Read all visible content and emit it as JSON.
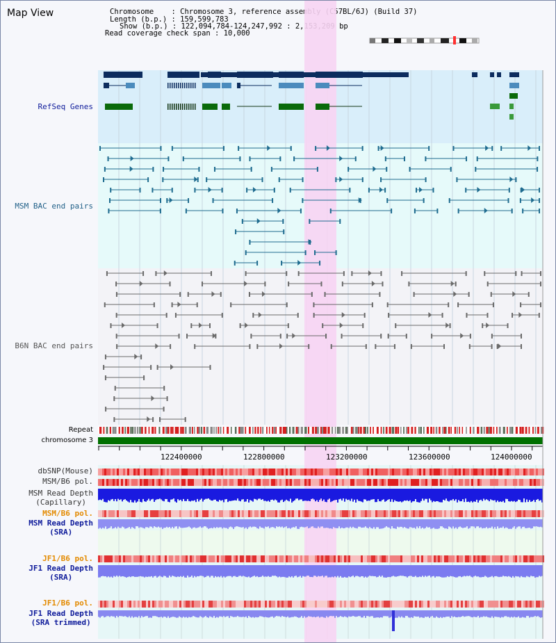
{
  "view": {
    "title": "Map View",
    "chromosome_line": "Chromosome    : Chromosome 3, reference assembly (C57BL/6J) (Build 37)",
    "length_line": "Length (b.p.) : 159,599,783",
    "show_line": "Show (b.p.) : 122,094,784-124,247,992 : 2,153,209 bp",
    "coverage_line": "Read coverage check span : 10,000"
  },
  "tracks": {
    "refseq": "RefSeq Genes",
    "msm_bac": "MSM BAC end pairs",
    "b6n_bac": "B6N BAC end pairs",
    "repeat": "Repeat",
    "chromosome": "chromosome 3",
    "dbsnp": "dbSNP(Mouse)",
    "msm_b6_pol_1": "MSM/B6 pol.",
    "msm_depth_cap": "MSM Read Depth\n(Capillary)",
    "msm_b6_pol_2": "MSM/B6 pol.",
    "msm_depth_sra": "MSM Read Depth\n(SRA)",
    "jf1_b6_pol_1": "JF1/B6 pol.",
    "jf1_depth_sra": "JF1 Read Depth\n(SRA)",
    "jf1_b6_pol_2": "JF1/B6 pol.",
    "jf1_depth_trim": "JF1 Read Depth\n(SRA trimmed)"
  },
  "axis": {
    "ticks": [
      "122400000",
      "122800000",
      "123200000",
      "123600000",
      "124000000"
    ]
  },
  "colors": {
    "refseq_label": "#0d1a9a",
    "msm_label": "#1f5f87",
    "b6n_label": "#555555",
    "highlight": "#f7d4f3",
    "chromosome_bar": "#007000",
    "pol_label": "#e38a00",
    "depth_label": "#0d1a9a"
  }
}
